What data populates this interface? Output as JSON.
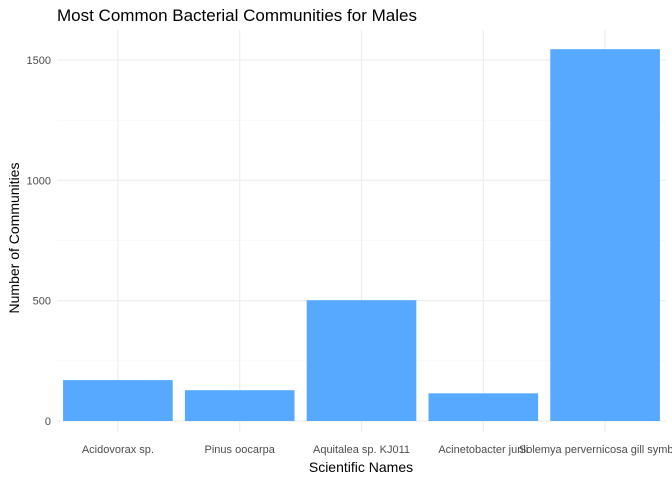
{
  "chart_data": {
    "type": "bar",
    "title": "Most Common Bacterial Communities for Males",
    "xlabel": "Scientific Names",
    "ylabel": "Number of Communities",
    "categories": [
      "Acidovorax sp.",
      "Pinus oocarpa",
      "Aquitalea sp. KJ011",
      "Acinetobacter junii",
      "Solemya pervernicosa gill symbiont"
    ],
    "values": [
      170,
      128,
      502,
      115,
      1545
    ],
    "yticks": [
      0,
      500,
      1000,
      1500
    ],
    "ylim": [
      0,
      1620
    ],
    "grid": true,
    "bar_color": "#56a9ff",
    "grid_color": "#ebebeb"
  }
}
